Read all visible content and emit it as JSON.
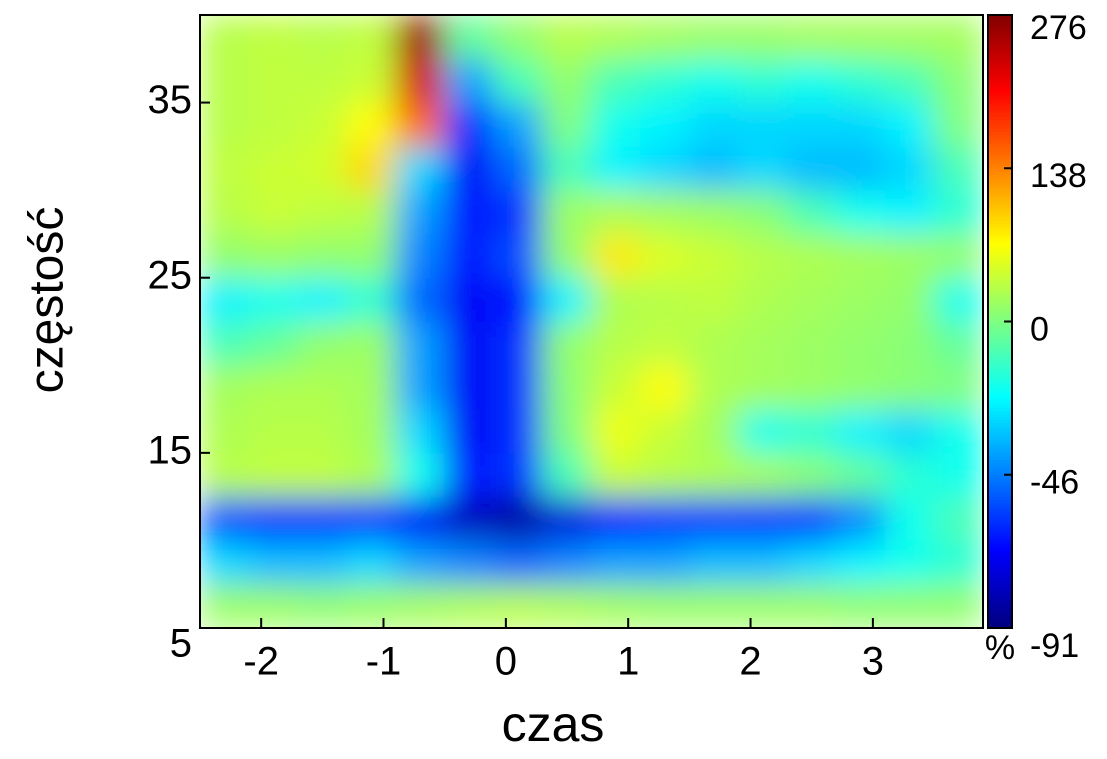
{
  "chart_data": {
    "type": "heatmap",
    "x_label": "czas",
    "y_label": "częstość",
    "x": [
      -2.3,
      -1.9,
      -1.5,
      -1.1,
      -0.7,
      -0.3,
      0.1,
      0.5,
      0.9,
      1.3,
      1.7,
      2.1,
      2.5,
      2.9,
      3.3,
      3.7
    ],
    "y": [
      6.25,
      8.75,
      11.25,
      13.75,
      16.25,
      18.75,
      21.25,
      23.75,
      26.25,
      28.75,
      31.25,
      33.75,
      36.25,
      38.75
    ],
    "values": [
      [
        15,
        15,
        10,
        15,
        20,
        25,
        30,
        25,
        20,
        15,
        15,
        15,
        15,
        10,
        10,
        10
      ],
      [
        -30,
        -35,
        -35,
        -30,
        -40,
        -45,
        -50,
        -45,
        -40,
        -40,
        -35,
        -35,
        -30,
        -25,
        -20,
        -15
      ],
      [
        -55,
        -60,
        -60,
        -60,
        -70,
        -80,
        -85,
        -75,
        -65,
        -60,
        -60,
        -60,
        -60,
        -45,
        -20,
        -10
      ],
      [
        30,
        35,
        35,
        25,
        -20,
        -65,
        -60,
        -10,
        40,
        30,
        25,
        20,
        5,
        -5,
        -15,
        -20
      ],
      [
        25,
        30,
        30,
        20,
        -30,
        -70,
        -60,
        0,
        60,
        40,
        20,
        -20,
        -15,
        -25,
        -30,
        -20
      ],
      [
        20,
        25,
        25,
        20,
        -40,
        -70,
        -60,
        5,
        40,
        70,
        25,
        20,
        15,
        10,
        5,
        0
      ],
      [
        -10,
        -5,
        10,
        15,
        -40,
        -70,
        -60,
        10,
        30,
        35,
        25,
        20,
        15,
        10,
        5,
        -5
      ],
      [
        -25,
        -20,
        -25,
        -15,
        -50,
        -70,
        -65,
        -25,
        25,
        30,
        35,
        25,
        20,
        15,
        10,
        -20
      ],
      [
        10,
        15,
        10,
        10,
        -45,
        -65,
        -55,
        10,
        80,
        50,
        40,
        30,
        25,
        20,
        15,
        10
      ],
      [
        30,
        40,
        35,
        30,
        -40,
        -65,
        -60,
        15,
        25,
        20,
        15,
        5,
        -10,
        -20,
        -25,
        -15
      ],
      [
        35,
        40,
        45,
        90,
        -30,
        -70,
        -50,
        -10,
        -25,
        -30,
        -35,
        -30,
        -35,
        -35,
        -30,
        -10
      ],
      [
        30,
        35,
        40,
        70,
        150,
        -60,
        -40,
        0,
        -20,
        -25,
        -30,
        -30,
        -30,
        -30,
        -25,
        0
      ],
      [
        30,
        35,
        35,
        40,
        230,
        -40,
        -10,
        10,
        -10,
        -15,
        -20,
        -15,
        -20,
        -15,
        -10,
        5
      ],
      [
        30,
        35,
        30,
        35,
        260,
        -5,
        10,
        30,
        25,
        20,
        15,
        15,
        20,
        20,
        20,
        20
      ]
    ],
    "xlim": [
      -2.5,
      3.9
    ],
    "xticks": [
      -2,
      -1,
      0,
      1,
      2,
      3
    ],
    "ylim": [
      5,
      40
    ],
    "yticks": [
      5,
      15,
      25,
      35
    ],
    "colormap": "jet",
    "clim": [
      -91,
      276
    ],
    "cticks": [
      -91,
      -46,
      0,
      138,
      276
    ],
    "colorbar_label": "%"
  }
}
